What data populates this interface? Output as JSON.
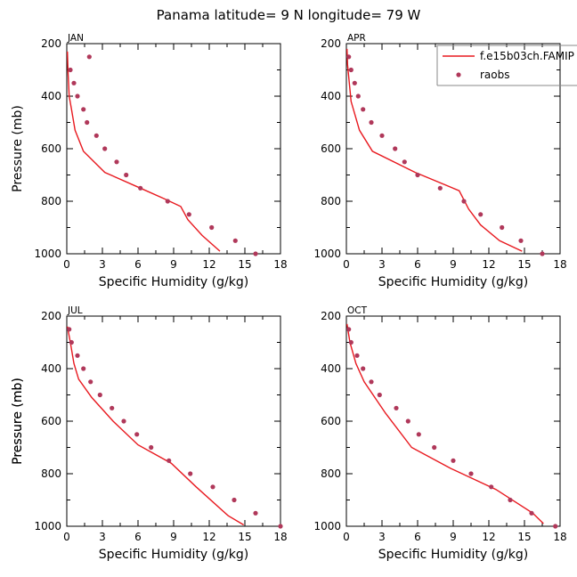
{
  "figure": {
    "title": "Panama  latitude= 9 N longitude= 79 W"
  },
  "legend": {
    "model_label": "f.e15b03ch.FAMIP",
    "obs_label": "raobs",
    "placement": "top-right of APR panel"
  },
  "colors": {
    "model_line": "#e8191f",
    "obs_marker": "#b0385a",
    "axis": "#000000"
  },
  "chart_data": [
    {
      "type": "line",
      "panel": "JAN",
      "xlabel": "Specific Humidity (g/kg)",
      "ylabel": "Pressure (mb)",
      "xlim": [
        0,
        18
      ],
      "ylim": [
        1000,
        200
      ],
      "y_inverted": true,
      "xticks": [
        "0",
        "3",
        "6",
        "9",
        "12",
        "15",
        "18"
      ],
      "yticks": [
        "200",
        "400",
        "600",
        "800",
        "1000"
      ],
      "series": [
        {
          "name": "f.e15b03ch.FAMIP",
          "style": "line",
          "points": [
            [
              0.05,
              230
            ],
            [
              0.1,
              300
            ],
            [
              0.2,
              400
            ],
            [
              0.4,
              450
            ],
            [
              0.7,
              530
            ],
            [
              1.4,
              610
            ],
            [
              3.2,
              690
            ],
            [
              6.2,
              750
            ],
            [
              8.2,
              790
            ],
            [
              9.6,
              820
            ],
            [
              10.2,
              870
            ],
            [
              11.4,
              930
            ],
            [
              12.9,
              990
            ]
          ]
        },
        {
          "name": "raobs",
          "style": "markers",
          "points": [
            [
              1.9,
              250
            ],
            [
              0.3,
              300
            ],
            [
              0.6,
              350
            ],
            [
              0.9,
              400
            ],
            [
              1.4,
              450
            ],
            [
              1.7,
              500
            ],
            [
              2.5,
              550
            ],
            [
              3.2,
              600
            ],
            [
              4.2,
              650
            ],
            [
              5.0,
              700
            ],
            [
              6.2,
              750
            ],
            [
              8.5,
              800
            ],
            [
              10.3,
              850
            ],
            [
              12.2,
              900
            ],
            [
              14.2,
              950
            ],
            [
              15.9,
              1000
            ]
          ]
        }
      ]
    },
    {
      "type": "line",
      "panel": "APR",
      "xlabel": "Specific Humidity (g/kg)",
      "ylabel": "",
      "xlim": [
        0,
        18
      ],
      "ylim": [
        1000,
        200
      ],
      "y_inverted": true,
      "xticks": [
        "0",
        "3",
        "6",
        "9",
        "12",
        "15",
        "18"
      ],
      "yticks": [
        "200",
        "400",
        "600",
        "800",
        "1000"
      ],
      "series": [
        {
          "name": "f.e15b03ch.FAMIP",
          "style": "line",
          "points": [
            [
              0.05,
              220
            ],
            [
              0.1,
              280
            ],
            [
              0.4,
              420
            ],
            [
              1.1,
              530
            ],
            [
              2.2,
              610
            ],
            [
              5.8,
              690
            ],
            [
              9.5,
              760
            ],
            [
              10.3,
              830
            ],
            [
              11.3,
              890
            ],
            [
              12.9,
              950
            ],
            [
              14.8,
              990
            ]
          ]
        },
        {
          "name": "raobs",
          "style": "markers",
          "points": [
            [
              0.2,
              250
            ],
            [
              0.4,
              300
            ],
            [
              0.7,
              350
            ],
            [
              1.0,
              400
            ],
            [
              1.4,
              450
            ],
            [
              2.1,
              500
            ],
            [
              3.0,
              550
            ],
            [
              4.1,
              600
            ],
            [
              4.9,
              650
            ],
            [
              6.0,
              700
            ],
            [
              7.9,
              750
            ],
            [
              9.9,
              800
            ],
            [
              11.3,
              850
            ],
            [
              13.1,
              900
            ],
            [
              14.7,
              950
            ],
            [
              16.5,
              1000
            ]
          ]
        }
      ]
    },
    {
      "type": "line",
      "panel": "JUL",
      "xlabel": "Specific Humidity (g/kg)",
      "ylabel": "Pressure (mb)",
      "xlim": [
        0,
        18
      ],
      "ylim": [
        1000,
        200
      ],
      "y_inverted": true,
      "xticks": [
        "0",
        "3",
        "6",
        "9",
        "12",
        "15",
        "18"
      ],
      "yticks": [
        "200",
        "400",
        "600",
        "800",
        "1000"
      ],
      "series": [
        {
          "name": "f.e15b03ch.FAMIP",
          "style": "line",
          "points": [
            [
              0.05,
              240
            ],
            [
              0.3,
              300
            ],
            [
              0.6,
              380
            ],
            [
              1.0,
              440
            ],
            [
              2.1,
              510
            ],
            [
              3.9,
              600
            ],
            [
              6.0,
              690
            ],
            [
              8.8,
              760
            ],
            [
              10.9,
              850
            ],
            [
              13.6,
              960
            ],
            [
              14.9,
              995
            ]
          ]
        },
        {
          "name": "raobs",
          "style": "markers",
          "points": [
            [
              0.2,
              250
            ],
            [
              0.4,
              300
            ],
            [
              0.9,
              350
            ],
            [
              1.4,
              400
            ],
            [
              2.0,
              450
            ],
            [
              2.8,
              500
            ],
            [
              3.8,
              550
            ],
            [
              4.8,
              600
            ],
            [
              5.9,
              650
            ],
            [
              7.1,
              700
            ],
            [
              8.6,
              750
            ],
            [
              10.4,
              800
            ],
            [
              12.3,
              850
            ],
            [
              14.1,
              900
            ],
            [
              15.9,
              950
            ],
            [
              18.0,
              1000
            ]
          ]
        }
      ]
    },
    {
      "type": "line",
      "panel": "OCT",
      "xlabel": "Specific Humidity (g/kg)",
      "ylabel": "Pressure (mb)",
      "xlim": [
        0,
        18
      ],
      "ylim": [
        1000,
        200
      ],
      "y_inverted": true,
      "xticks": [
        "0",
        "3",
        "6",
        "9",
        "12",
        "15",
        "18"
      ],
      "yticks": [
        "200",
        "400",
        "600",
        "800",
        "1000"
      ],
      "series": [
        {
          "name": "f.e15b03ch.FAMIP",
          "style": "line",
          "points": [
            [
              0.05,
              230
            ],
            [
              0.3,
              300
            ],
            [
              0.8,
              380
            ],
            [
              1.5,
              450
            ],
            [
              3.3,
              570
            ],
            [
              5.5,
              700
            ],
            [
              8.8,
              780
            ],
            [
              12.6,
              860
            ],
            [
              15.7,
              950
            ],
            [
              16.6,
              990
            ]
          ]
        },
        {
          "name": "raobs",
          "style": "markers",
          "points": [
            [
              0.2,
              250
            ],
            [
              0.4,
              300
            ],
            [
              0.9,
              350
            ],
            [
              1.4,
              400
            ],
            [
              2.1,
              450
            ],
            [
              2.8,
              500
            ],
            [
              4.2,
              550
            ],
            [
              5.2,
              600
            ],
            [
              6.1,
              650
            ],
            [
              7.4,
              700
            ],
            [
              9.0,
              750
            ],
            [
              10.5,
              800
            ],
            [
              12.2,
              850
            ],
            [
              13.8,
              900
            ],
            [
              15.6,
              950
            ],
            [
              17.6,
              1000
            ]
          ]
        }
      ]
    }
  ]
}
